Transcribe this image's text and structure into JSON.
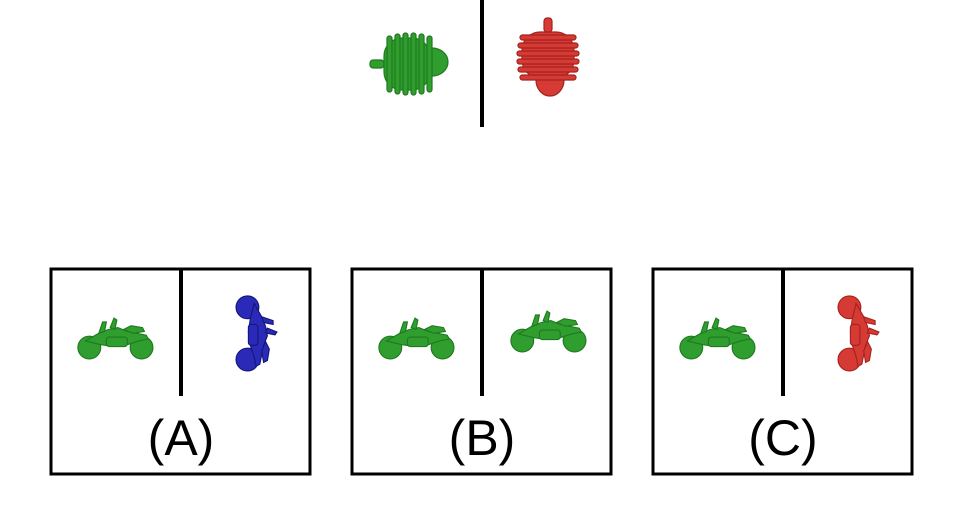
{
  "colors": {
    "green": "#2f9e2f",
    "green_dark": "#1f7a1f",
    "red": "#d63a34",
    "red_dark": "#a5221e",
    "blue": "#2a2ab8",
    "blue_dark": "#15157a",
    "line": "#000000"
  },
  "prompt": {
    "left_object": {
      "icon": "coil-icon",
      "color": "green",
      "orientation": "horizontal"
    },
    "right_object": {
      "icon": "coil-icon",
      "color": "red",
      "orientation": "rotated-90"
    }
  },
  "options": [
    {
      "label": "(A)",
      "left": {
        "icon": "motorcycle-icon",
        "color": "green",
        "orientation": "horizontal"
      },
      "right": {
        "icon": "motorcycle-icon",
        "color": "blue",
        "orientation": "vertical"
      }
    },
    {
      "label": "(B)",
      "left": {
        "icon": "motorcycle-icon",
        "color": "green",
        "orientation": "horizontal"
      },
      "right": {
        "icon": "motorcycle-icon",
        "color": "green",
        "orientation": "horizontal"
      }
    },
    {
      "label": "(C)",
      "left": {
        "icon": "motorcycle-icon",
        "color": "green",
        "orientation": "horizontal"
      },
      "right": {
        "icon": "motorcycle-icon",
        "color": "red",
        "orientation": "vertical"
      }
    }
  ]
}
